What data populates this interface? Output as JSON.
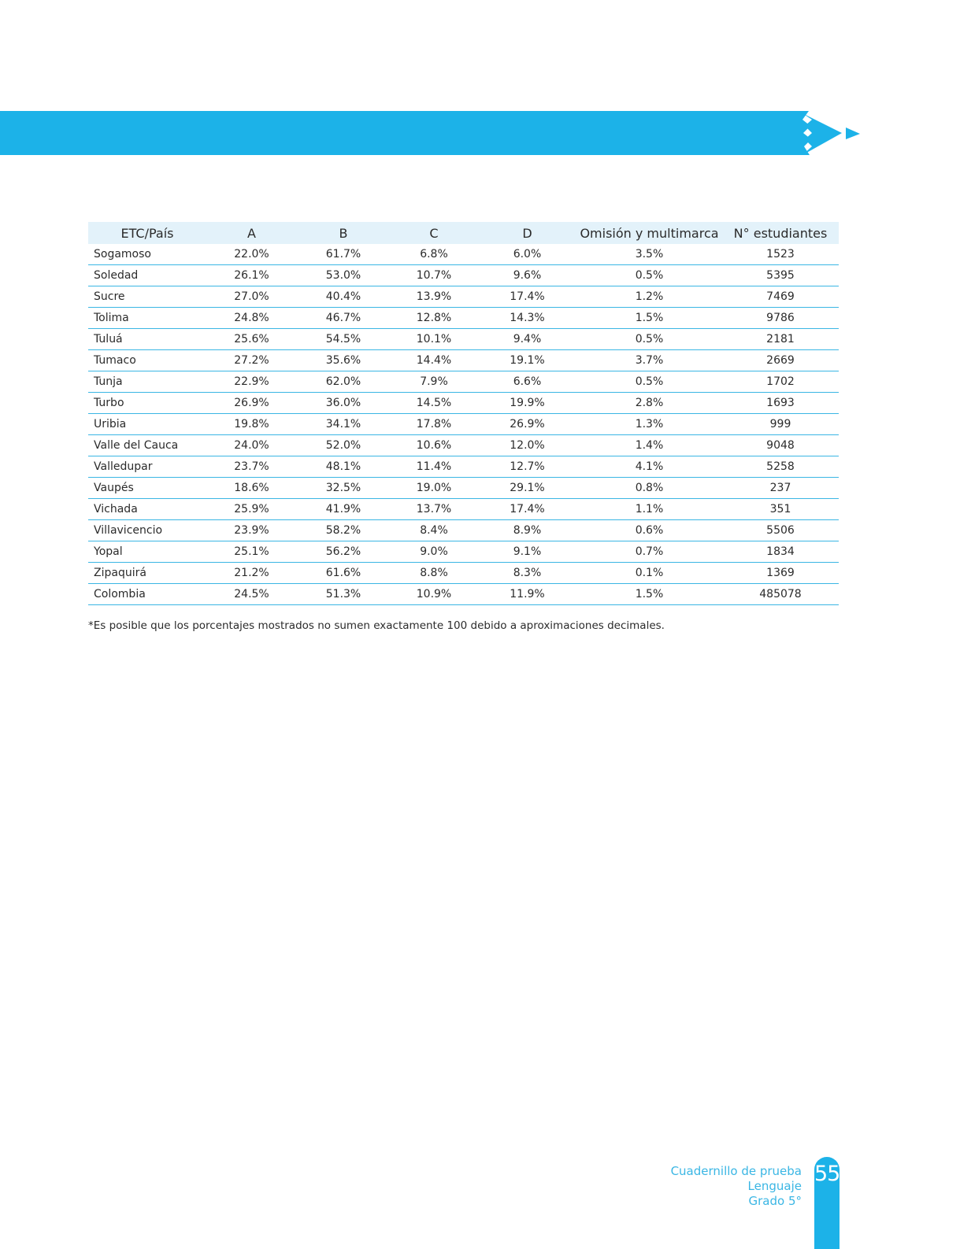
{
  "theme": {
    "accent": "#1cb2e8",
    "header_bg": "#e3f2fa",
    "rule_color": "#3ab6e4"
  },
  "table": {
    "columns": [
      "ETC/País",
      "A",
      "B",
      "C",
      "D",
      "Omisión y multimarca",
      "N° estudiantes"
    ],
    "rows": [
      [
        "Sogamoso",
        "22.0%",
        "61.7%",
        "6.8%",
        "6.0%",
        "3.5%",
        "1523"
      ],
      [
        "Soledad",
        "26.1%",
        "53.0%",
        "10.7%",
        "9.6%",
        "0.5%",
        "5395"
      ],
      [
        "Sucre",
        "27.0%",
        "40.4%",
        "13.9%",
        "17.4%",
        "1.2%",
        "7469"
      ],
      [
        "Tolima",
        "24.8%",
        "46.7%",
        "12.8%",
        "14.3%",
        "1.5%",
        "9786"
      ],
      [
        "Tuluá",
        "25.6%",
        "54.5%",
        "10.1%",
        "9.4%",
        "0.5%",
        "2181"
      ],
      [
        "Tumaco",
        "27.2%",
        "35.6%",
        "14.4%",
        "19.1%",
        "3.7%",
        "2669"
      ],
      [
        "Tunja",
        "22.9%",
        "62.0%",
        "7.9%",
        "6.6%",
        "0.5%",
        "1702"
      ],
      [
        "Turbo",
        "26.9%",
        "36.0%",
        "14.5%",
        "19.9%",
        "2.8%",
        "1693"
      ],
      [
        "Uribia",
        "19.8%",
        "34.1%",
        "17.8%",
        "26.9%",
        "1.3%",
        "999"
      ],
      [
        "Valle del Cauca",
        "24.0%",
        "52.0%",
        "10.6%",
        "12.0%",
        "1.4%",
        "9048"
      ],
      [
        "Valledupar",
        "23.7%",
        "48.1%",
        "11.4%",
        "12.7%",
        "4.1%",
        "5258"
      ],
      [
        "Vaupés",
        "18.6%",
        "32.5%",
        "19.0%",
        "29.1%",
        "0.8%",
        "237"
      ],
      [
        "Vichada",
        "25.9%",
        "41.9%",
        "13.7%",
        "17.4%",
        "1.1%",
        "351"
      ],
      [
        "Villavicencio",
        "23.9%",
        "58.2%",
        "8.4%",
        "8.9%",
        "0.6%",
        "5506"
      ],
      [
        "Yopal",
        "25.1%",
        "56.2%",
        "9.0%",
        "9.1%",
        "0.7%",
        "1834"
      ],
      [
        "Zipaquirá",
        "21.2%",
        "61.6%",
        "8.8%",
        "8.3%",
        "0.1%",
        "1369"
      ],
      [
        "Colombia",
        "24.5%",
        "51.3%",
        "10.9%",
        "11.9%",
        "1.5%",
        "485078"
      ]
    ],
    "footnote": "*Es posible que los porcentajes mostrados no sumen exactamente 100 debido a aproximaciones decimales."
  },
  "footer": {
    "line1": "Cuadernillo de prueba",
    "line2": "Lenguaje",
    "line3": "Grado 5°",
    "page_number": "55"
  }
}
